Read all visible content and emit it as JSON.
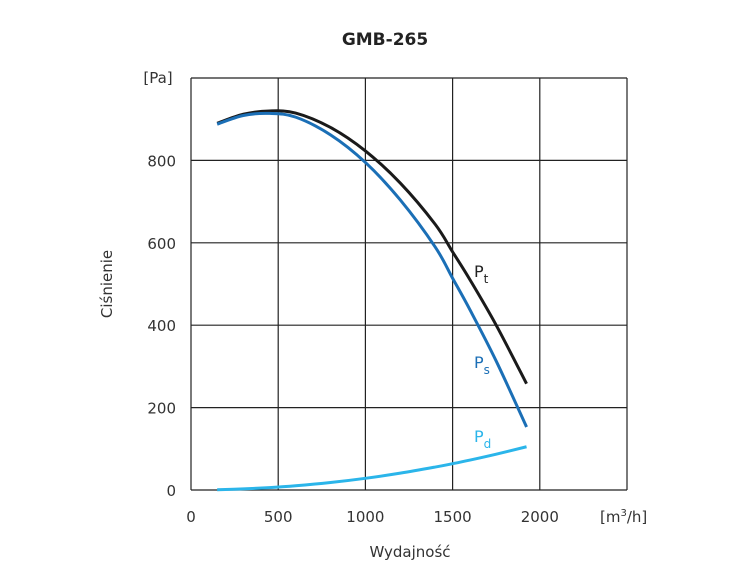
{
  "chart_data": {
    "type": "line",
    "title": "GMB-265",
    "xlabel": "Wydajność",
    "ylabel": "Ciśnienie",
    "x_unit": "[m",
    "x_unit_sup": "3",
    "x_unit_tail": "/h]",
    "y_unit": "[Pa]",
    "xlim": [
      0,
      2500
    ],
    "ylim": [
      0,
      1000
    ],
    "xticks": [
      0,
      500,
      1000,
      1500,
      2000
    ],
    "xtick_labels": [
      "0",
      "500",
      "1000",
      "1500",
      "2000"
    ],
    "yticks": [
      0,
      200,
      400,
      600,
      800
    ],
    "ytick_labels": [
      "0",
      "200",
      "400",
      "600",
      "800"
    ],
    "grid": true,
    "series": [
      {
        "name": "Pt",
        "label_main": "P",
        "label_sub": "t",
        "color": "#1a1a1a",
        "x": [
          150,
          300,
          450,
          600,
          800,
          1000,
          1200,
          1400,
          1500,
          1600,
          1750,
          1924
        ],
        "y": [
          890,
          912,
          920,
          915,
          880,
          823,
          745,
          645,
          578,
          510,
          400,
          258
        ]
      },
      {
        "name": "Ps",
        "label_main": "P",
        "label_sub": "s",
        "color": "#1b6fb6",
        "x": [
          150,
          300,
          450,
          600,
          800,
          1000,
          1200,
          1400,
          1500,
          1600,
          1750,
          1924
        ],
        "y": [
          888,
          909,
          914,
          905,
          862,
          795,
          704,
          590,
          514,
          437,
          313,
          153
        ]
      },
      {
        "name": "Pd",
        "label_main": "P",
        "label_sub": "d",
        "color": "#2bb5ea",
        "x": [
          150,
          300,
          450,
          600,
          800,
          1000,
          1200,
          1400,
          1500,
          1600,
          1750,
          1924
        ],
        "y": [
          0.6,
          2.6,
          5.8,
          10.2,
          18.2,
          28.4,
          40.9,
          55.7,
          63.9,
          72.7,
          87,
          105
        ]
      }
    ]
  }
}
